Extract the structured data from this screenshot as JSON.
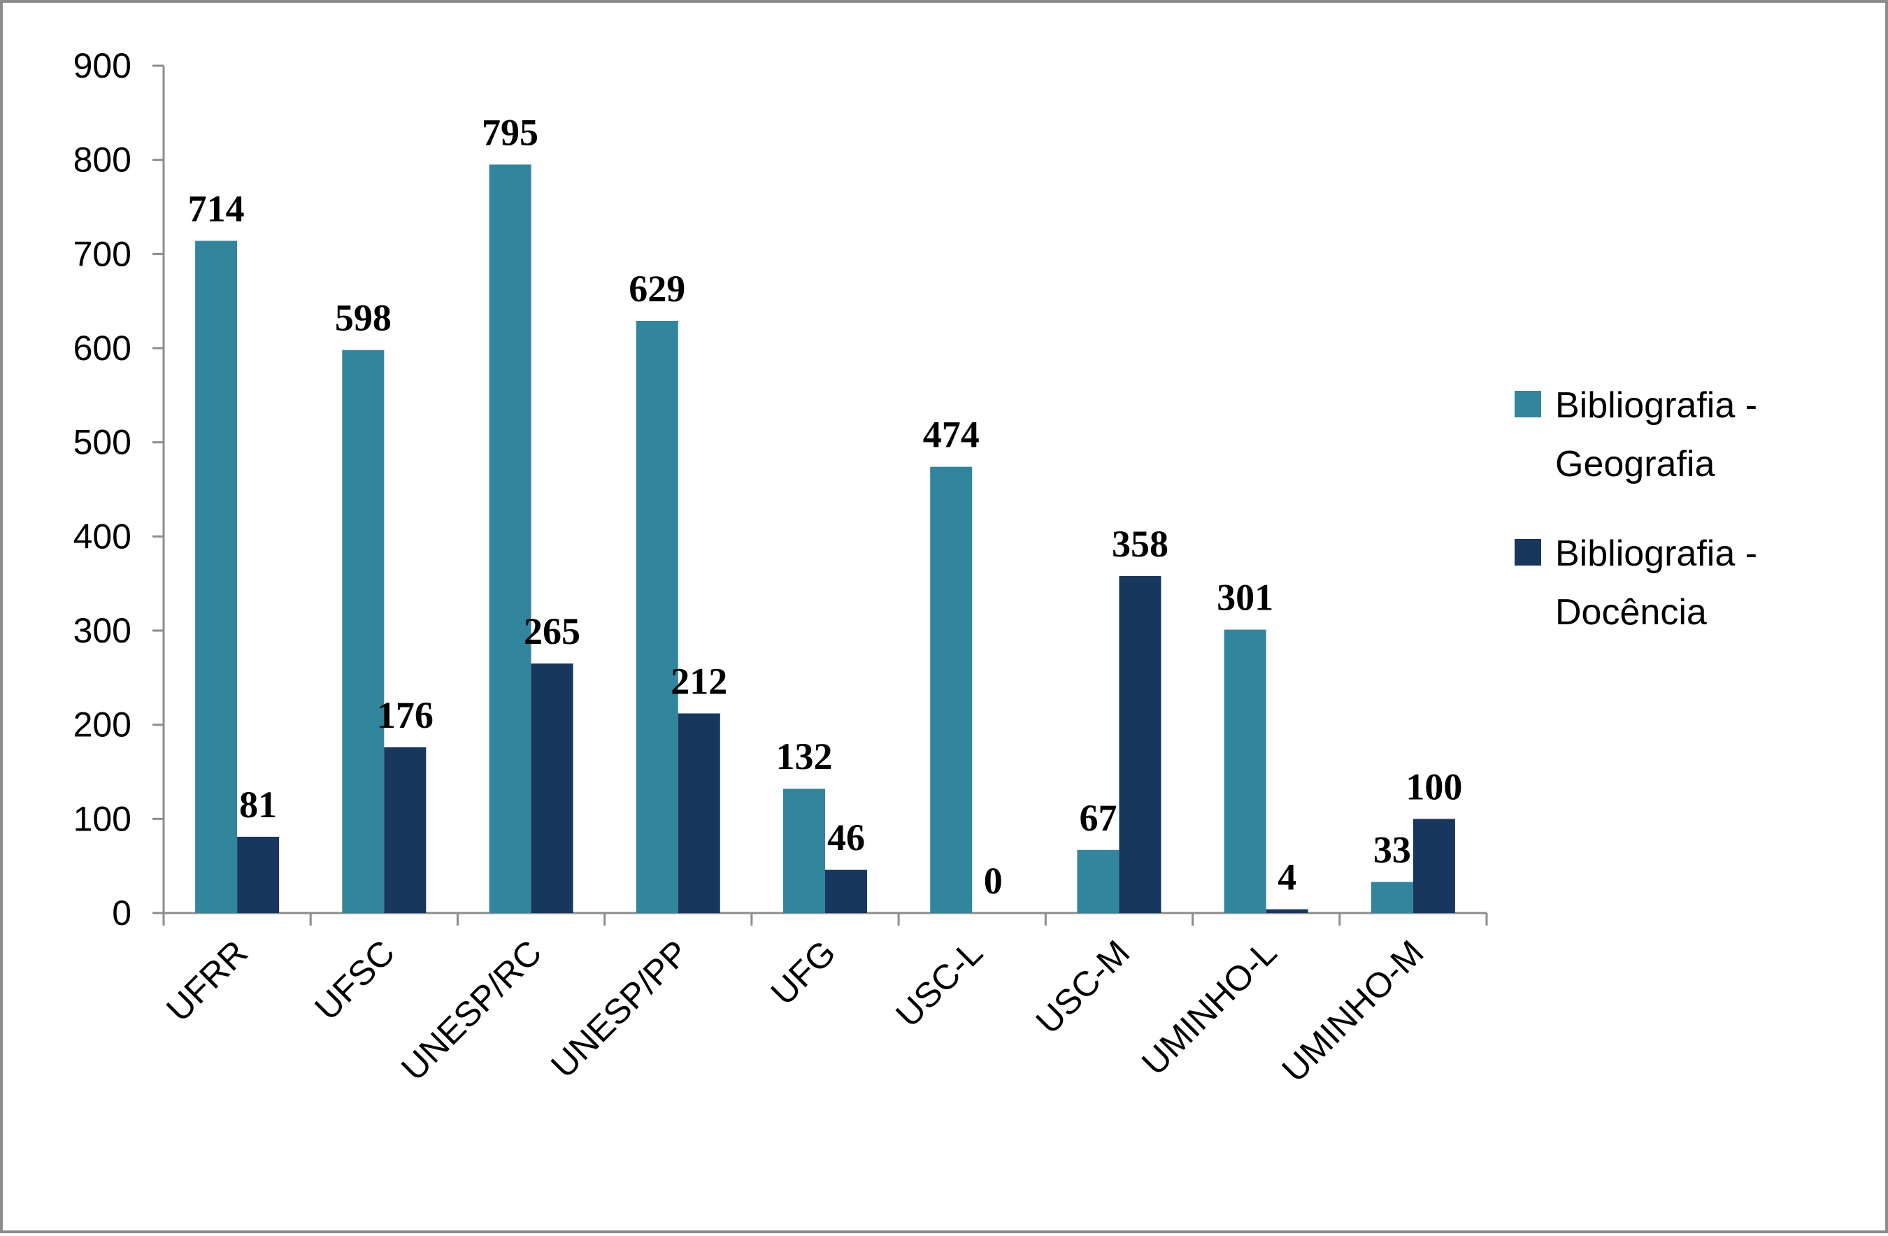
{
  "chart_data": {
    "type": "bar",
    "title": "",
    "xlabel": "",
    "ylabel": "",
    "ylim": [
      0,
      900
    ],
    "yticks": [
      0,
      100,
      200,
      300,
      400,
      500,
      600,
      700,
      800,
      900
    ],
    "categories": [
      "UFRR",
      "UFSC",
      "UNESP/RC",
      "UNESP/PP",
      "UFG",
      "USC-L",
      "USC-M",
      "UMINHO-L",
      "UMINHO-M"
    ],
    "series": [
      {
        "name": "Bibliografia - Geografia",
        "legend_lines": [
          "Bibliografia -",
          "Geografia"
        ],
        "color": "#31859c",
        "values": [
          714,
          598,
          795,
          629,
          132,
          474,
          67,
          301,
          33
        ]
      },
      {
        "name": "Bibliografia - Docência",
        "legend_lines": [
          "Bibliografia -",
          "Docência"
        ],
        "color": "#17375e",
        "values": [
          81,
          176,
          265,
          212,
          46,
          0,
          358,
          4,
          100
        ]
      }
    ],
    "data_labels": true,
    "grid": false,
    "legend": "right"
  }
}
